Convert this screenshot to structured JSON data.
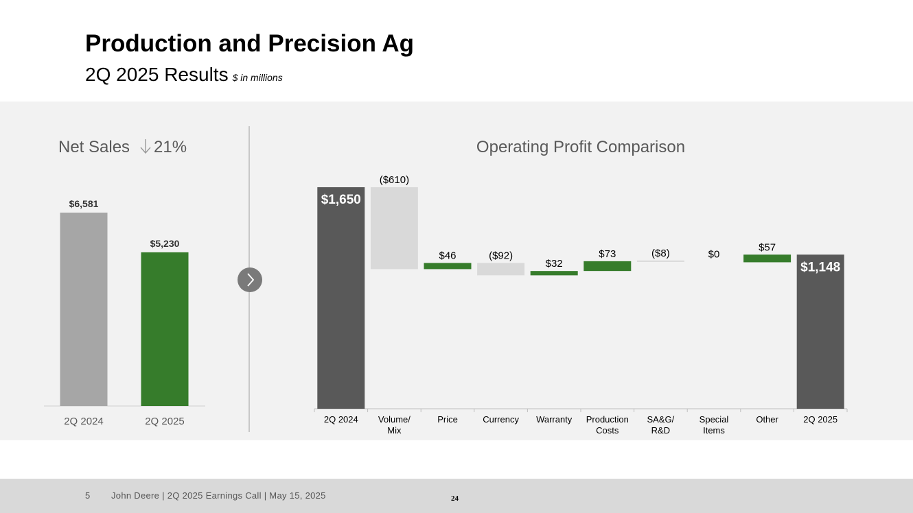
{
  "header": {
    "title": "Production and Precision Ag",
    "subtitle": "2Q 2025 Results",
    "unit_note": "$ in millions"
  },
  "footer": {
    "page": "5",
    "text": "John Deere | 2Q 2025 Earnings Call | May 15, 2025",
    "slide_number": "24"
  },
  "colors": {
    "prior": "#a6a6a6",
    "green": "#367c2b",
    "total": "#595959",
    "negative": "#d9d9d9"
  },
  "chart_data": [
    {
      "type": "bar",
      "title": "Net Sales",
      "title_change": "21%",
      "categories": [
        "2Q 2024",
        "2Q 2025"
      ],
      "values": [
        6581,
        5230
      ],
      "labels": [
        "$6,581",
        "$5,230"
      ],
      "ylim": [
        0,
        8000
      ]
    },
    {
      "type": "waterfall",
      "title": "Operating Profit Comparison",
      "ylim": [
        0,
        1900
      ],
      "steps": [
        {
          "category": [
            "2Q 2024"
          ],
          "kind": "total",
          "value": 1650,
          "label": "$1,650"
        },
        {
          "category": [
            "Volume/",
            "Mix"
          ],
          "kind": "delta",
          "value": -610,
          "label": "($610)"
        },
        {
          "category": [
            "Price"
          ],
          "kind": "delta",
          "value": 46,
          "label": "$46"
        },
        {
          "category": [
            "Currency"
          ],
          "kind": "delta",
          "value": -92,
          "label": "($92)"
        },
        {
          "category": [
            "Warranty"
          ],
          "kind": "delta",
          "value": 32,
          "label": "$32"
        },
        {
          "category": [
            "Production",
            "Costs"
          ],
          "kind": "delta",
          "value": 73,
          "label": "$73"
        },
        {
          "category": [
            "SA&G/",
            "R&D"
          ],
          "kind": "delta",
          "value": -8,
          "label": "($8)"
        },
        {
          "category": [
            "Special",
            "Items"
          ],
          "kind": "delta",
          "value": 0,
          "label": "$0"
        },
        {
          "category": [
            "Other"
          ],
          "kind": "delta",
          "value": 57,
          "label": "$57"
        },
        {
          "category": [
            "2Q 2025"
          ],
          "kind": "total",
          "value": 1148,
          "label": "$1,148"
        }
      ]
    }
  ]
}
